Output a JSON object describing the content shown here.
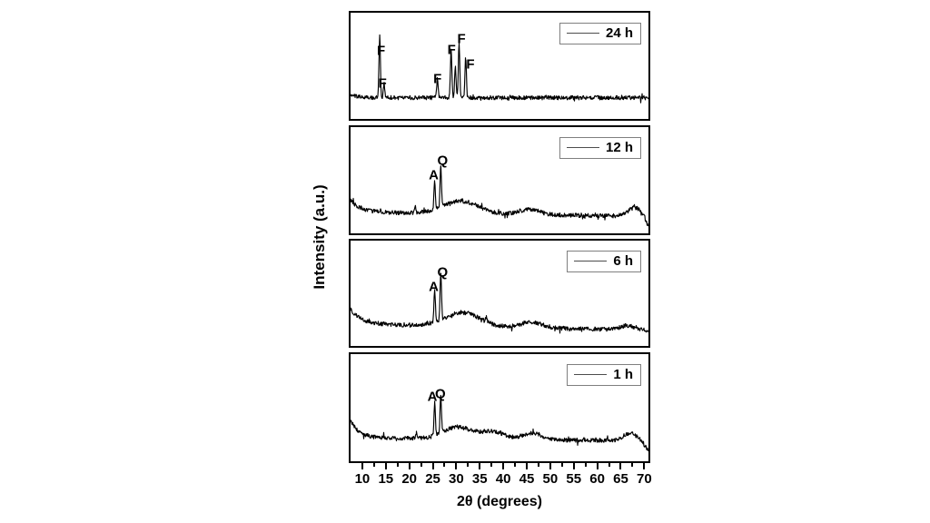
{
  "chart_data": {
    "type": "line",
    "title": "",
    "xlabel": "2θ (degrees)",
    "ylabel": "Intensity (a.u.)",
    "x_range_degrees": [
      7.5,
      70.9
    ],
    "x_ticks": [
      10,
      15,
      20,
      25,
      30,
      35,
      40,
      45,
      50,
      55,
      60,
      65,
      70
    ],
    "x_minor_step": 2.5,
    "legend_position": "top-right",
    "grid": false,
    "line_color": "#000000",
    "legend_border_color": "#7f7f7f",
    "series": [
      {
        "name": "24 h",
        "baseline": 0.8,
        "tilt": 0.0,
        "left_decay": {
          "amp": 0.02,
          "tau": 2.0
        },
        "humps": [],
        "peaks": [
          {
            "two_theta": 13.7,
            "height": 0.58
          },
          {
            "two_theta": 14.6,
            "height": 0.13
          },
          {
            "two_theta": 26.0,
            "height": 0.18
          },
          {
            "two_theta": 28.9,
            "height": 0.45
          },
          {
            "two_theta": 29.8,
            "height": 0.3
          },
          {
            "two_theta": 30.6,
            "height": 0.52
          },
          {
            "two_theta": 32.0,
            "height": 0.38
          }
        ],
        "annotations": [
          {
            "text": "F",
            "x": 14.0,
            "y_frac": 0.36
          },
          {
            "text": "F",
            "x": 14.3,
            "y_frac": 0.67
          },
          {
            "text": "F",
            "x": 26.0,
            "y_frac": 0.62
          },
          {
            "text": "F",
            "x": 29.0,
            "y_frac": 0.35
          },
          {
            "text": "F",
            "x": 31.1,
            "y_frac": 0.25
          },
          {
            "text": "F",
            "x": 33.0,
            "y_frac": 0.49
          }
        ]
      },
      {
        "name": "12 h",
        "baseline": 0.8,
        "tilt": 0.04,
        "left_decay": {
          "amp": 0.11,
          "tau": 2.2
        },
        "humps": [
          {
            "center": 31.0,
            "height": 0.12,
            "width": 3.6
          },
          {
            "center": 45.5,
            "height": 0.05,
            "width": 2.2
          },
          {
            "center": 68.0,
            "height": 0.08,
            "width": 1.4
          },
          {
            "center": 70.9,
            "height": -0.1,
            "width": 0.6
          }
        ],
        "peaks": [
          {
            "two_theta": 21.3,
            "height": 0.05
          },
          {
            "two_theta": 25.4,
            "height": 0.27
          },
          {
            "two_theta": 26.7,
            "height": 0.4
          }
        ],
        "annotations": [
          {
            "text": "A",
            "x": 25.2,
            "y_frac": 0.45
          },
          {
            "text": "Q",
            "x": 27.1,
            "y_frac": 0.32
          }
        ]
      },
      {
        "name": "6 h",
        "baseline": 0.79,
        "tilt": 0.06,
        "left_decay": {
          "amp": 0.14,
          "tau": 2.2
        },
        "humps": [
          {
            "center": 31.3,
            "height": 0.13,
            "width": 3.6
          },
          {
            "center": 46.0,
            "height": 0.05,
            "width": 2.3
          },
          {
            "center": 66.5,
            "height": 0.04,
            "width": 1.4
          }
        ],
        "peaks": [
          {
            "two_theta": 25.4,
            "height": 0.3
          },
          {
            "two_theta": 26.7,
            "height": 0.44
          },
          {
            "two_theta": 36.4,
            "height": 0.05
          }
        ],
        "annotations": [
          {
            "text": "A",
            "x": 25.2,
            "y_frac": 0.44
          },
          {
            "text": "Q",
            "x": 27.1,
            "y_frac": 0.3
          }
        ]
      },
      {
        "name": "1 h",
        "baseline": 0.78,
        "tilt": 0.03,
        "left_decay": {
          "amp": 0.16,
          "tau": 1.8
        },
        "humps": [
          {
            "center": 30.3,
            "height": 0.11,
            "width": 3.0
          },
          {
            "center": 37.8,
            "height": 0.07,
            "width": 2.4
          },
          {
            "center": 46.0,
            "height": 0.06,
            "width": 2.0
          },
          {
            "center": 67.0,
            "height": 0.07,
            "width": 1.4
          },
          {
            "center": 70.9,
            "height": -0.08,
            "width": 0.8
          }
        ],
        "peaks": [
          {
            "two_theta": 21.5,
            "height": 0.05
          },
          {
            "two_theta": 25.4,
            "height": 0.3
          },
          {
            "two_theta": 26.7,
            "height": 0.35
          }
        ],
        "annotations": [
          {
            "text": "A",
            "x": 24.9,
            "y_frac": 0.4
          },
          {
            "text": "Q",
            "x": 26.6,
            "y_frac": 0.37
          }
        ]
      }
    ]
  }
}
